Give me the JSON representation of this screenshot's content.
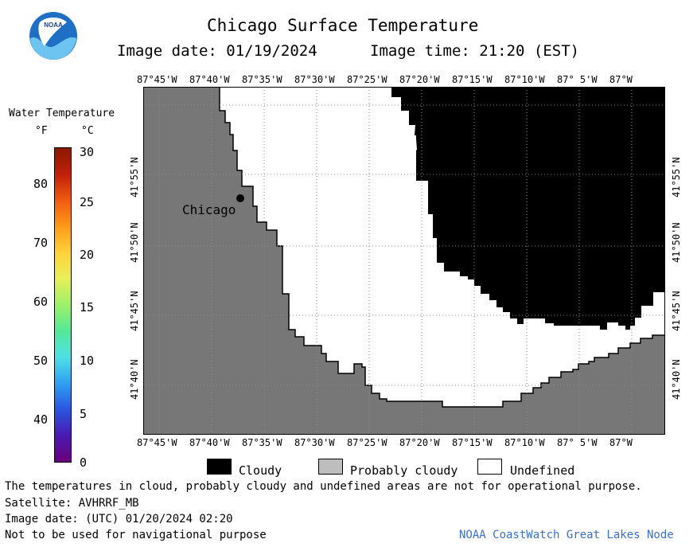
{
  "header": {
    "title": "Chicago Surface Temperature",
    "image_date": "Image date: 01/19/2024",
    "image_time": "Image time: 21:20 (EST)"
  },
  "logo": {
    "text": "NOAA"
  },
  "colorbar": {
    "title": "Water Temperature",
    "unit_f": "°F",
    "unit_c": "°C",
    "f_ticks": [
      "80",
      "70",
      "60",
      "50",
      "40"
    ],
    "c_ticks": [
      "30",
      "25",
      "20",
      "15",
      "10",
      "5",
      "0"
    ],
    "colors": [
      "#6b007a",
      "#4a1ab2",
      "#2a54e0",
      "#2ea0f0",
      "#4fe0e6",
      "#55e89a",
      "#9ef06a",
      "#e8ee5a",
      "#ffd23a",
      "#ff9a1a",
      "#f05a10",
      "#c0200a",
      "#8a1800"
    ]
  },
  "map": {
    "lon_labels": [
      "87°45'W",
      "87°40'W",
      "87°35'W",
      "87°30'W",
      "87°25'W",
      "87°20'W",
      "87°15'W",
      "87°10'W",
      "87° 5'W",
      "87°W"
    ],
    "lat_labels": [
      "41°55'N",
      "41°50'N",
      "41°45'N",
      "41°40'N"
    ],
    "city_label": "Chicago",
    "colors": {
      "land": "#777777",
      "cloudy": "#000000",
      "undefined": "#ffffff"
    }
  },
  "legend": {
    "items": [
      {
        "label": "Cloudy",
        "color": "#000000"
      },
      {
        "label": "Probably cloudy",
        "color": "#bdbdbd"
      },
      {
        "label": "Undefined",
        "color": "#ffffff"
      }
    ]
  },
  "footer": {
    "disclaimer": "The temperatures in cloud, probably cloudy and undefined areas are not for operational purpose.",
    "satellite": "Satellite: AVHRRF_MB",
    "utc_date": "Image date: (UTC) 01/20/2024  02:20",
    "nav_note": "Not to be used for navigational purpose",
    "credit": "NOAA CoastWatch Great Lakes Node"
  }
}
